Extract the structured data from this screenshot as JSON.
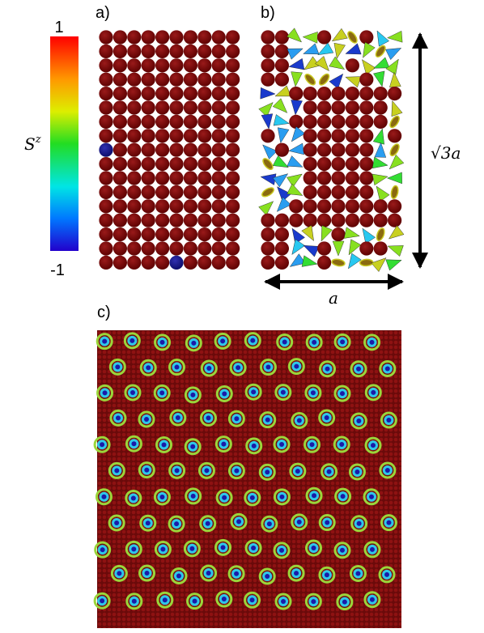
{
  "colorbar": {
    "max_label": "1",
    "min_label": "-1",
    "quantity": {
      "base": "S",
      "sup": "z"
    }
  },
  "panels": {
    "a": {
      "label": "a)"
    },
    "b": {
      "label": "b)",
      "height_label": "√3a",
      "width_label": "a"
    },
    "c": {
      "label": "c)"
    }
  }
}
